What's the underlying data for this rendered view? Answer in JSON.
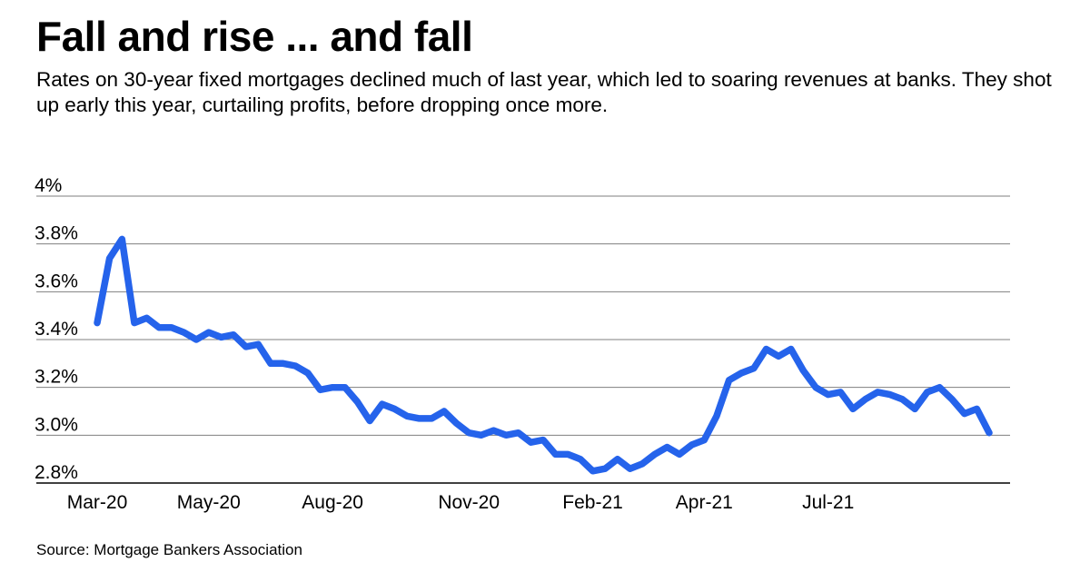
{
  "title": "Fall and rise ... and fall",
  "subtitle": "Rates on 30-year fixed mortgages declined much of last year, which led to soaring revenues at banks. They shot up early this year, curtailing profits, before dropping once more.",
  "source": "Source: Mortgage Bankers Association",
  "colors": {
    "line": "#2563eb",
    "grid": "#7f7f7f",
    "axis": "#000000"
  },
  "chart_data": {
    "type": "line",
    "title": "Fall and rise ... and fall",
    "xlabel": "",
    "ylabel": "",
    "ylim": [
      2.8,
      4.0
    ],
    "grid": true,
    "y_ticks": [
      "4%",
      "3.8%",
      "3.6%",
      "3.4%",
      "3.2%",
      "3.0%",
      "2.8%"
    ],
    "y_tick_values": [
      4.0,
      3.8,
      3.6,
      3.4,
      3.2,
      3.0,
      2.8
    ],
    "x_ticks": [
      "Mar-20",
      "May-20",
      "Aug-20",
      "Nov-20",
      "Feb-21",
      "Apr-21",
      "Jul-21"
    ],
    "x_tick_index": [
      0,
      9,
      19,
      30,
      40,
      49,
      59
    ],
    "series": [
      {
        "values": [
          3.47,
          3.74,
          3.82,
          3.47,
          3.49,
          3.45,
          3.45,
          3.43,
          3.4,
          3.43,
          3.41,
          3.42,
          3.37,
          3.38,
          3.3,
          3.3,
          3.29,
          3.26,
          3.19,
          3.2,
          3.2,
          3.14,
          3.06,
          3.13,
          3.11,
          3.08,
          3.07,
          3.07,
          3.1,
          3.05,
          3.01,
          3.0,
          3.02,
          3.0,
          3.01,
          2.97,
          2.98,
          2.92,
          2.92,
          2.9,
          2.85,
          2.86,
          2.9,
          2.86,
          2.88,
          2.92,
          2.95,
          2.92,
          2.96,
          2.98,
          3.08,
          3.23,
          3.26,
          3.28,
          3.36,
          3.33,
          3.36,
          3.27,
          3.2,
          3.17,
          3.18,
          3.11,
          3.15,
          3.18,
          3.17,
          3.15,
          3.11,
          3.18,
          3.2,
          3.15,
          3.09,
          3.11,
          3.01
        ]
      }
    ]
  }
}
